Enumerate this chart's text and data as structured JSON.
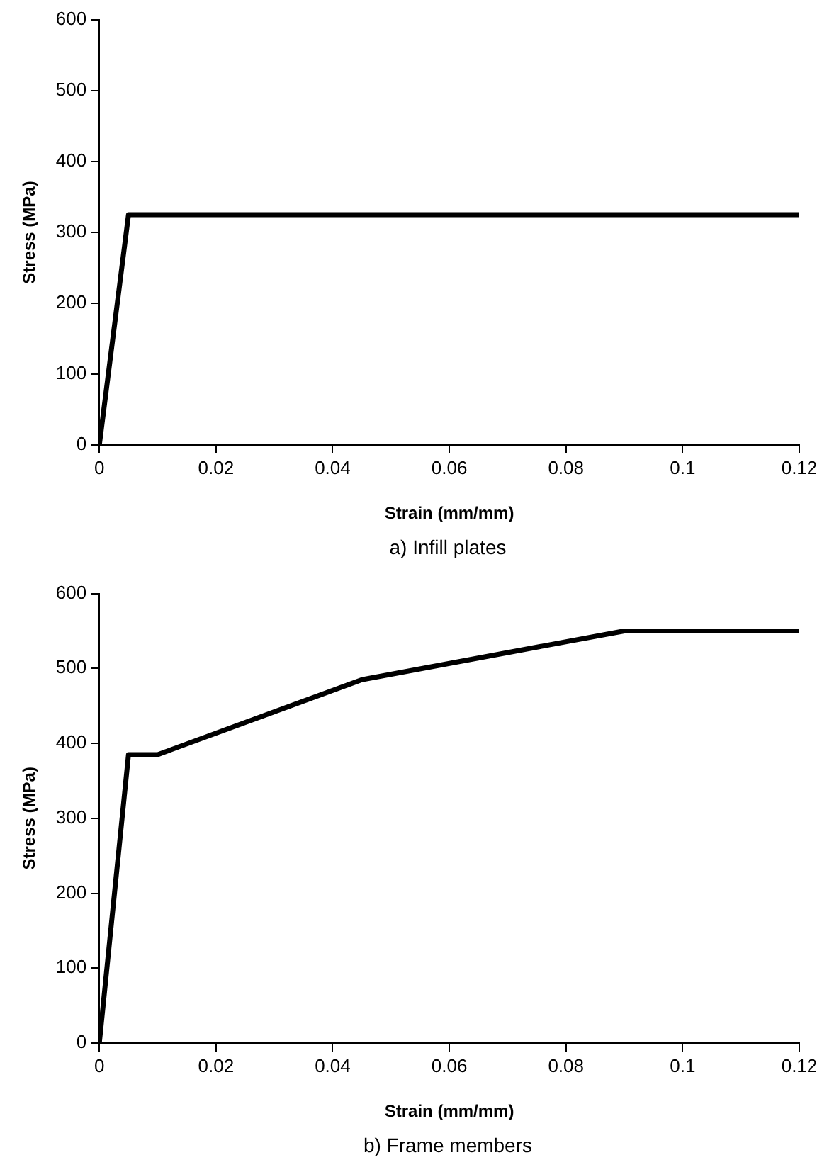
{
  "chart_data": [
    {
      "type": "line",
      "xlabel": "Strain (mm/mm)",
      "ylabel": "Stress (MPa)",
      "annotations": [
        "a) Infill plates"
      ],
      "x": [
        0,
        0.005,
        0.12
      ],
      "series": [
        {
          "color": "#000000",
          "values": [
            0,
            325,
            325
          ]
        }
      ],
      "xlim": [
        0,
        0.12
      ],
      "xticks": [
        0,
        0.02,
        0.04,
        0.06,
        0.08,
        0.1,
        0.12
      ],
      "ylim": [
        0,
        600
      ],
      "yticks": [
        0,
        100,
        200,
        300,
        400,
        500,
        600
      ],
      "grid": false,
      "legend": false,
      "marker": "none",
      "line_style": "solid"
    },
    {
      "type": "line",
      "xlabel": "Strain (mm/mm)",
      "ylabel": "Stress (MPa)",
      "annotations": [
        "b) Frame members"
      ],
      "x": [
        0,
        0.005,
        0.01,
        0.045,
        0.09,
        0.12
      ],
      "series": [
        {
          "color": "#000000",
          "values": [
            0,
            385,
            385,
            485,
            550,
            550
          ]
        }
      ],
      "xlim": [
        0,
        0.12
      ],
      "xticks": [
        0,
        0.02,
        0.04,
        0.06,
        0.08,
        0.1,
        0.12
      ],
      "ylim": [
        0,
        600
      ],
      "yticks": [
        0,
        100,
        200,
        300,
        400,
        500,
        600
      ],
      "grid": false,
      "legend": false,
      "marker": "none",
      "line_style": "solid"
    }
  ]
}
